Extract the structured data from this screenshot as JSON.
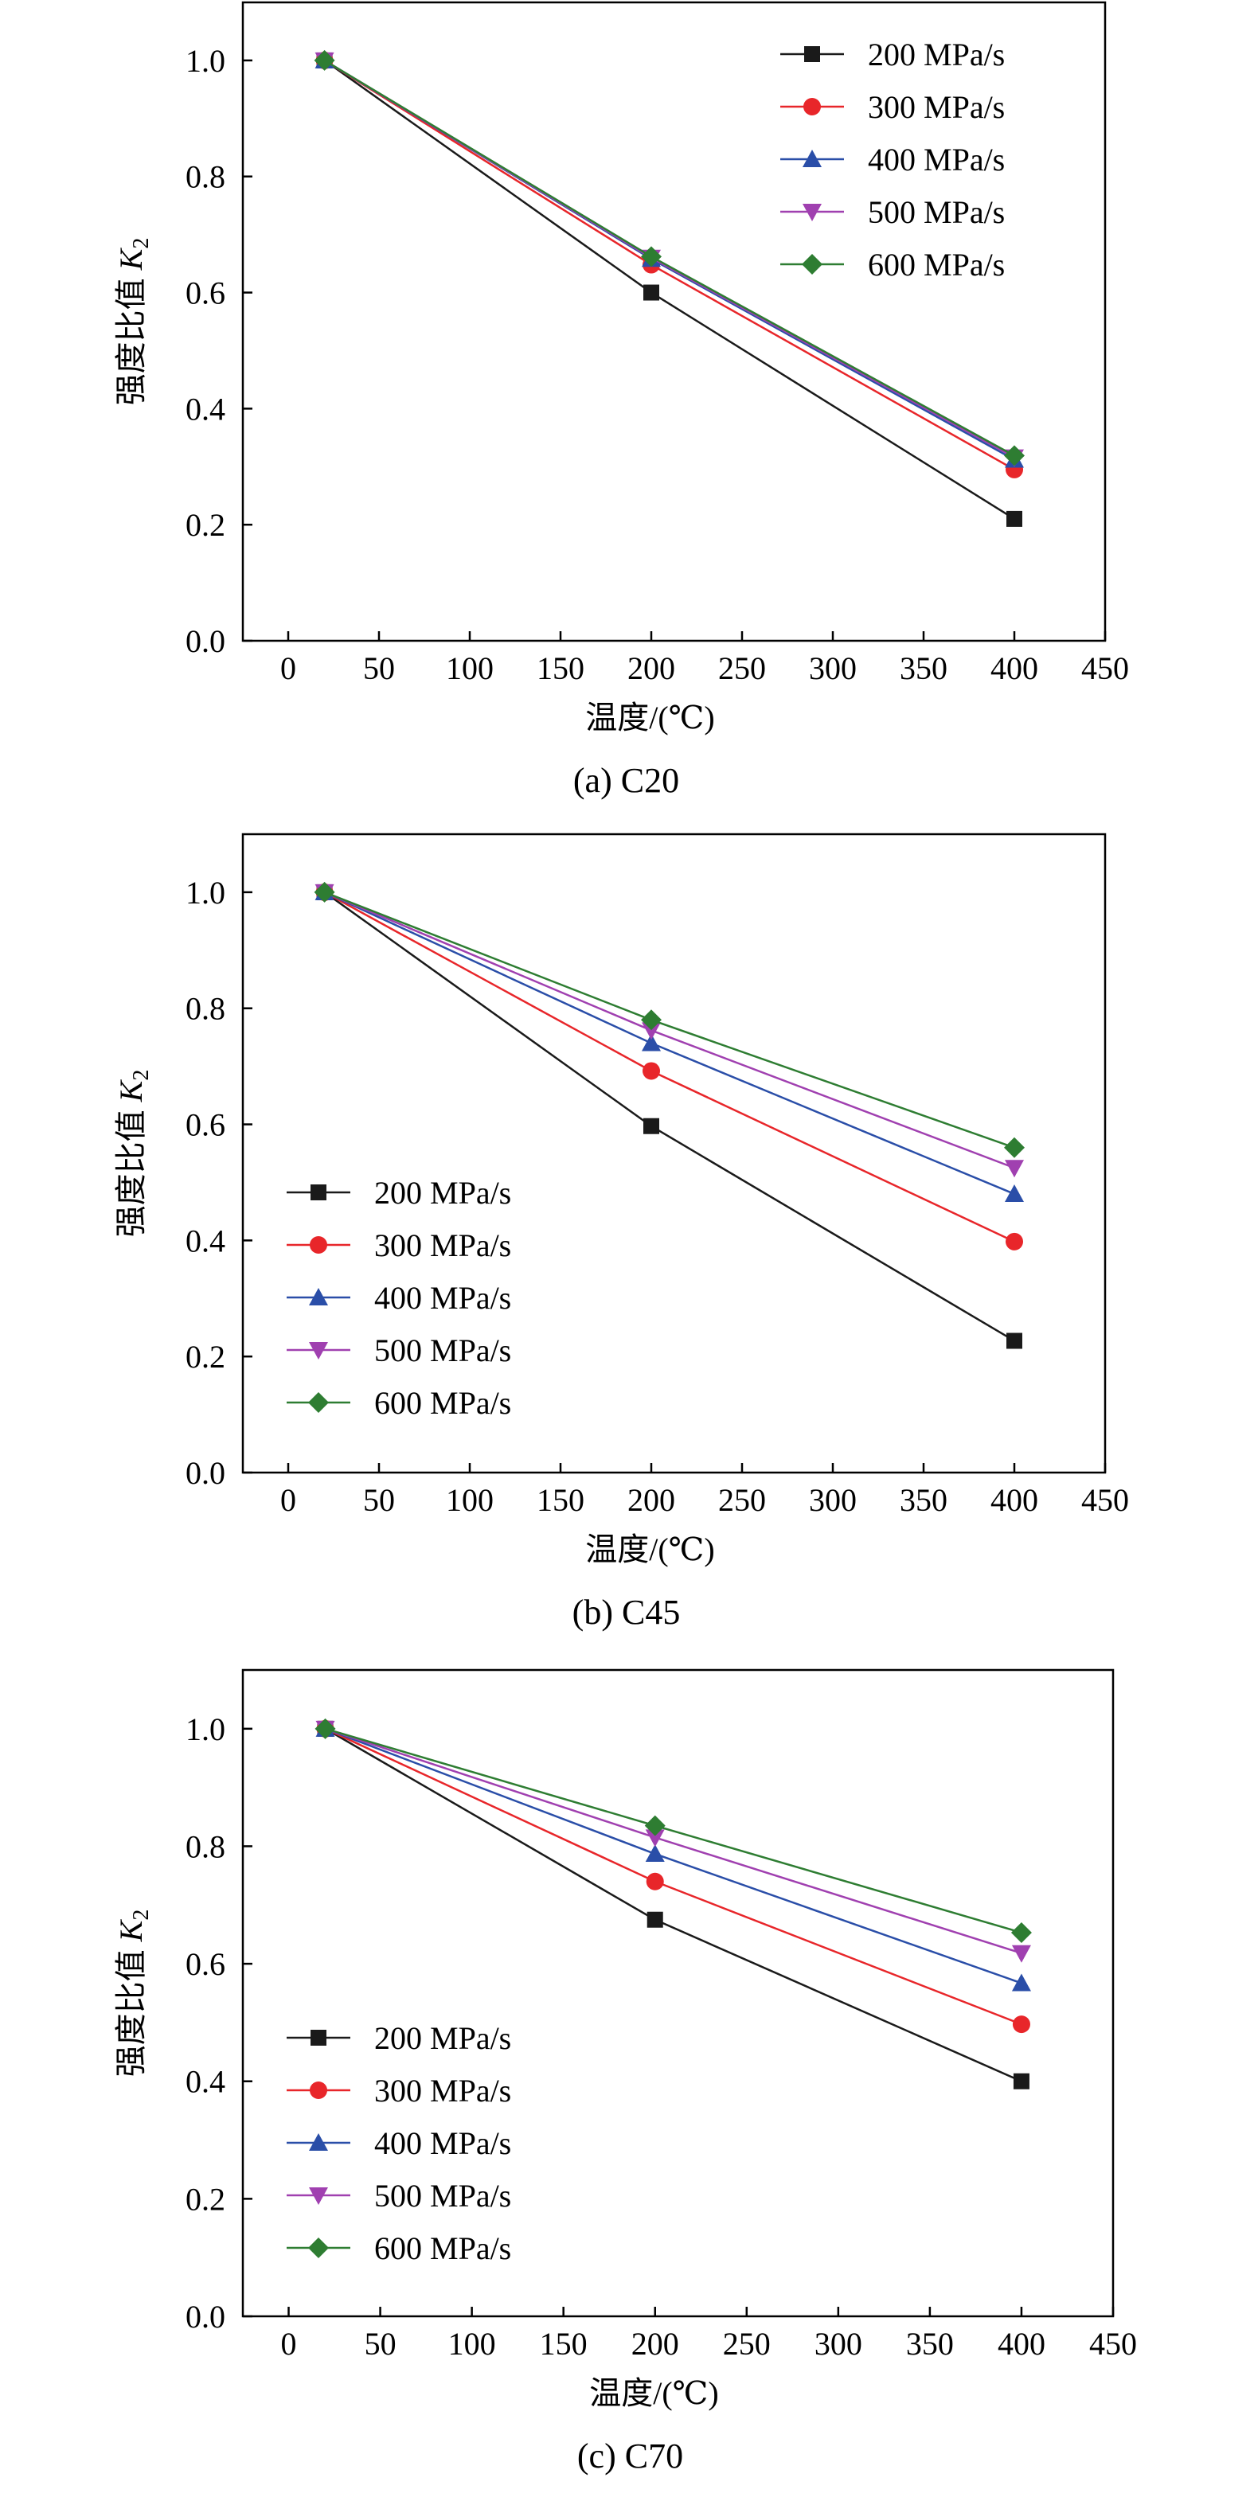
{
  "chart_data": [
    {
      "type": "line",
      "caption": "(a) C20",
      "xlabel": "温度/(℃)",
      "ylabel": "强度比值 K",
      "ylabel_sub": "2",
      "xlim": [
        -25,
        450
      ],
      "ylim": [
        0.0,
        1.1
      ],
      "x_ticks": [
        0,
        50,
        100,
        150,
        200,
        250,
        300,
        350,
        400,
        450
      ],
      "y_ticks": [
        0.0,
        0.2,
        0.4,
        0.6,
        0.8,
        1.0
      ],
      "y_tick_labels": [
        "0.0",
        "0.2",
        "0.4",
        "0.6",
        "0.8",
        "1.0"
      ],
      "legend_position": "top-right",
      "x": [
        20,
        200,
        400
      ],
      "series": [
        {
          "name": "200 MPa/s",
          "color": "#1a1a1a",
          "marker": "square",
          "values": [
            1.0,
            0.6,
            0.21
          ]
        },
        {
          "name": "300 MPa/s",
          "color": "#e8262a",
          "marker": "circle",
          "values": [
            1.0,
            0.648,
            0.295
          ]
        },
        {
          "name": "400 MPa/s",
          "color": "#2a4ea8",
          "marker": "triangle-up",
          "values": [
            1.0,
            0.658,
            0.312
          ]
        },
        {
          "name": "500 MPa/s",
          "color": "#a040b0",
          "marker": "triangle-down",
          "values": [
            1.0,
            0.66,
            0.316
          ]
        },
        {
          "name": "600 MPa/s",
          "color": "#2e7d32",
          "marker": "diamond",
          "values": [
            1.0,
            0.662,
            0.319
          ]
        }
      ]
    },
    {
      "type": "line",
      "caption": "(b) C45",
      "xlabel": "温度/(℃)",
      "ylabel": "强度比值 K",
      "ylabel_sub": "2",
      "xlim": [
        -25,
        450
      ],
      "ylim": [
        0.0,
        1.1
      ],
      "x_ticks": [
        0,
        50,
        100,
        150,
        200,
        250,
        300,
        350,
        400,
        450
      ],
      "y_ticks": [
        0.0,
        0.2,
        0.4,
        0.6,
        0.8,
        1.0
      ],
      "y_tick_labels": [
        "0.0",
        "0.2",
        "0.4",
        "0.6",
        "0.8",
        "1.0"
      ],
      "legend_position": "bottom-left",
      "x": [
        20,
        200,
        400
      ],
      "series": [
        {
          "name": "200 MPa/s",
          "color": "#1a1a1a",
          "marker": "square",
          "values": [
            1.0,
            0.597,
            0.227
          ]
        },
        {
          "name": "300 MPa/s",
          "color": "#e8262a",
          "marker": "circle",
          "values": [
            1.0,
            0.692,
            0.398
          ]
        },
        {
          "name": "400 MPa/s",
          "color": "#2a4ea8",
          "marker": "triangle-up",
          "values": [
            1.0,
            0.74,
            0.48
          ]
        },
        {
          "name": "500 MPa/s",
          "color": "#a040b0",
          "marker": "triangle-down",
          "values": [
            1.0,
            0.762,
            0.525
          ]
        },
        {
          "name": "600 MPa/s",
          "color": "#2e7d32",
          "marker": "diamond",
          "values": [
            1.0,
            0.78,
            0.56
          ]
        }
      ]
    },
    {
      "type": "line",
      "caption": "(c) C70",
      "xlabel": "温度/(℃)",
      "ylabel": "强度比值 K",
      "ylabel_sub": "2",
      "xlim": [
        -25,
        450
      ],
      "ylim": [
        0.0,
        1.1
      ],
      "x_ticks": [
        0,
        50,
        100,
        150,
        200,
        250,
        300,
        350,
        400,
        450
      ],
      "y_ticks": [
        0.0,
        0.2,
        0.4,
        0.6,
        0.8,
        1.0
      ],
      "y_tick_labels": [
        "0.0",
        "0.2",
        "0.4",
        "0.6",
        "0.8",
        "1.0"
      ],
      "legend_position": "bottom-left",
      "x": [
        20,
        200,
        400
      ],
      "series": [
        {
          "name": "200 MPa/s",
          "color": "#1a1a1a",
          "marker": "square",
          "values": [
            1.0,
            0.675,
            0.4
          ]
        },
        {
          "name": "300 MPa/s",
          "color": "#e8262a",
          "marker": "circle",
          "values": [
            1.0,
            0.74,
            0.497
          ]
        },
        {
          "name": "400 MPa/s",
          "color": "#2a4ea8",
          "marker": "triangle-up",
          "values": [
            1.0,
            0.787,
            0.567
          ]
        },
        {
          "name": "500 MPa/s",
          "color": "#a040b0",
          "marker": "triangle-down",
          "values": [
            1.0,
            0.815,
            0.618
          ]
        },
        {
          "name": "600 MPa/s",
          "color": "#2e7d32",
          "marker": "diamond",
          "values": [
            1.0,
            0.835,
            0.653
          ]
        }
      ]
    }
  ]
}
